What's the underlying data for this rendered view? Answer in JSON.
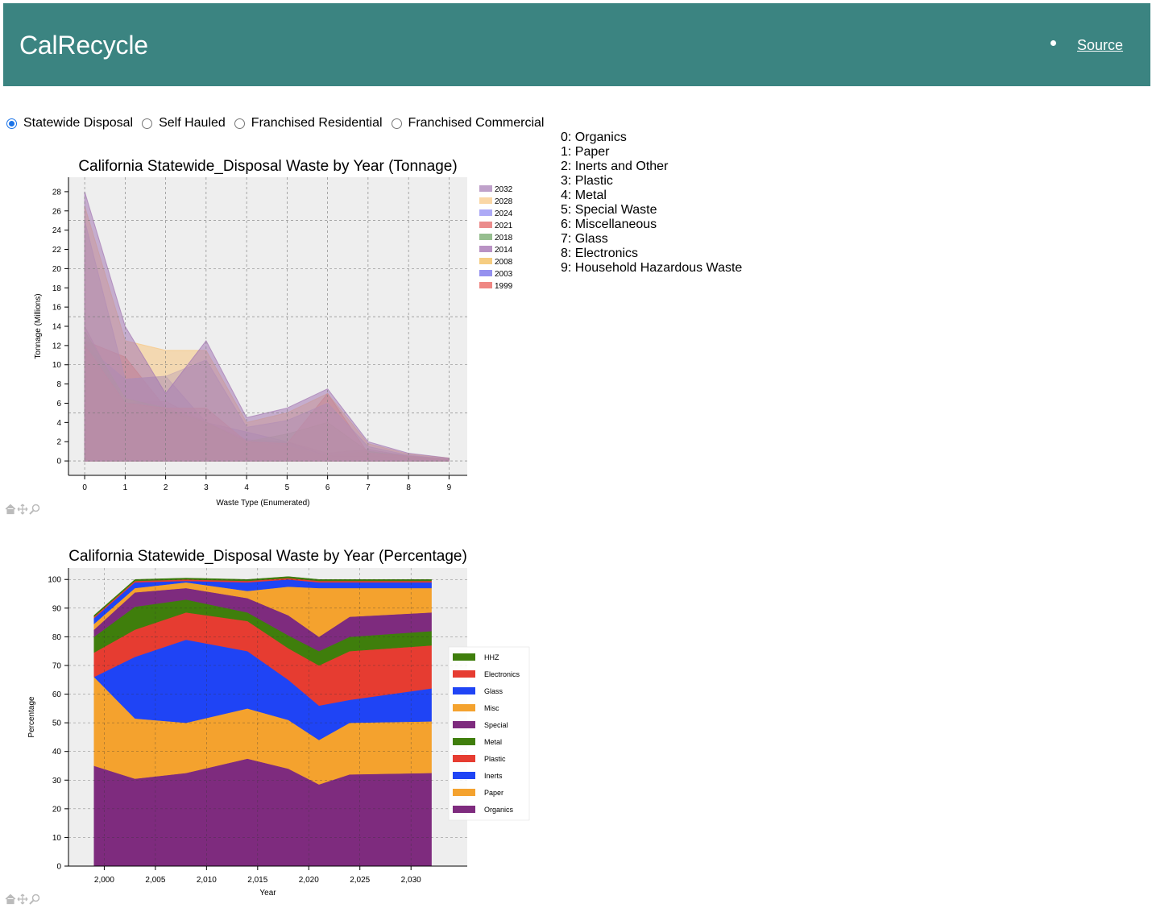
{
  "header": {
    "brand": "CalRecycle",
    "nav_link": "Source"
  },
  "radio_group": {
    "selected": 0,
    "options": [
      "Statewide Disposal",
      "Self Hauled",
      "Franchised Residential",
      "Franchised Commercial"
    ]
  },
  "waste_key": [
    "0: Organics",
    "1: Paper",
    "2: Inerts and Other",
    "3: Plastic",
    "4: Metal",
    "5: Special Waste",
    "6: Miscellaneous",
    "7: Glass",
    "8: Electronics",
    "9: Household Hazardous Waste"
  ],
  "toolbar_icons": [
    "home-icon",
    "pan-icon",
    "zoom-icon"
  ],
  "chart_data": [
    {
      "type": "area",
      "title": "California Statewide_Disposal Waste by Year (Tonnage)",
      "xlabel": "Waste Type (Enumerated)",
      "ylabel": "Tonnage (Millions)",
      "xlim": [
        -0.4,
        9.45
      ],
      "ylim": [
        -1.5,
        29.5
      ],
      "x_ticks": [
        0,
        1,
        2,
        3,
        4,
        5,
        6,
        7,
        8,
        9
      ],
      "y_ticks": [
        0,
        2,
        4,
        6,
        8,
        10,
        12,
        14,
        16,
        18,
        20,
        22,
        24,
        26,
        28
      ],
      "grid": true,
      "legend_position": "right",
      "series": [
        {
          "name": "2032",
          "color": "#a479b4",
          "values": [
            [
              0,
              28.0
            ],
            [
              1,
              14.0
            ],
            [
              2,
              7.0
            ],
            [
              3,
              12.5
            ],
            [
              4,
              4.5
            ],
            [
              5,
              5.5
            ],
            [
              6,
              7.5
            ],
            [
              7,
              2.0
            ],
            [
              8,
              0.8
            ],
            [
              9,
              0.3
            ]
          ]
        },
        {
          "name": "2028",
          "color": "#f8c680",
          "values": [
            [
              0,
              26.5
            ],
            [
              1,
              12.5
            ],
            [
              2,
              11.5
            ],
            [
              3,
              11.5
            ],
            [
              4,
              4.0
            ],
            [
              5,
              5.0
            ],
            [
              6,
              7.0
            ],
            [
              7,
              1.8
            ],
            [
              8,
              0.7
            ],
            [
              9,
              0.3
            ]
          ]
        },
        {
          "name": "2024",
          "color": "#8a86f2",
          "values": [
            [
              0,
              25.0
            ],
            [
              1,
              8.5
            ],
            [
              2,
              8.8
            ],
            [
              3,
              10.5
            ],
            [
              4,
              3.5
            ],
            [
              5,
              4.2
            ],
            [
              6,
              6.0
            ],
            [
              7,
              1.5
            ],
            [
              8,
              0.6
            ],
            [
              9,
              0.2
            ]
          ]
        },
        {
          "name": "2021",
          "color": "#e35b5b",
          "values": [
            [
              0,
              12.0
            ],
            [
              1,
              6.0
            ],
            [
              2,
              5.5
            ],
            [
              3,
              5.5
            ],
            [
              4,
              2.0
            ],
            [
              5,
              1.8
            ],
            [
              6,
              7.0
            ],
            [
              7,
              0.8
            ],
            [
              8,
              0.5
            ],
            [
              9,
              0.2
            ]
          ]
        },
        {
          "name": "2018",
          "color": "#6aa25f",
          "values": [
            [
              0,
              13.5
            ],
            [
              1,
              6.5
            ],
            [
              2,
              5.5
            ],
            [
              3,
              4.0
            ],
            [
              4,
              2.0
            ],
            [
              5,
              2.8
            ],
            [
              6,
              4.0
            ],
            [
              7,
              1.0
            ],
            [
              8,
              0.5
            ],
            [
              9,
              0.2
            ]
          ]
        },
        {
          "name": "2014",
          "color": "#9b64ab",
          "values": [
            [
              0,
              14.0
            ],
            [
              1,
              6.0
            ],
            [
              2,
              6.2
            ],
            [
              3,
              4.0
            ],
            [
              4,
              2.2
            ],
            [
              5,
              2.0
            ],
            [
              6,
              0.8
            ],
            [
              7,
              1.2
            ],
            [
              8,
              0.5
            ],
            [
              9,
              0.2
            ]
          ]
        },
        {
          "name": "2008",
          "color": "#f2b84c",
          "values": [
            [
              0,
              12.5
            ],
            [
              1,
              6.5
            ],
            [
              2,
              5.0
            ],
            [
              3,
              4.0
            ],
            [
              4,
              2.0
            ],
            [
              5,
              1.5
            ],
            [
              6,
              0.5
            ],
            [
              7,
              1.0
            ],
            [
              8,
              0.4
            ],
            [
              9,
              0.1
            ]
          ]
        },
        {
          "name": "2003",
          "color": "#6863e8",
          "values": [
            [
              0,
              12.0
            ],
            [
              1,
              8.5
            ],
            [
              2,
              8.8
            ],
            [
              3,
              4.0
            ],
            [
              4,
              3.0
            ],
            [
              5,
              2.0
            ],
            [
              6,
              0.5
            ],
            [
              7,
              0.5
            ],
            [
              8,
              0.3
            ],
            [
              9,
              0.1
            ]
          ]
        },
        {
          "name": "1999",
          "color": "#e8544e",
          "values": [
            [
              0,
              12.5
            ],
            [
              1,
              10.8
            ],
            [
              2,
              5.5
            ],
            [
              3,
              3.5
            ],
            [
              4,
              1.5
            ],
            [
              5,
              1.2
            ],
            [
              6,
              0.5
            ],
            [
              7,
              0.5
            ],
            [
              8,
              0.3
            ],
            [
              9,
              0.1
            ]
          ]
        }
      ]
    },
    {
      "type": "area",
      "stacked": true,
      "title": "California Statewide_Disposal Waste by Year (Percentage)",
      "xlabel": "Year",
      "ylabel": "Percentage",
      "x": [
        1999,
        2003,
        2008,
        2014,
        2018,
        2021,
        2024,
        2032
      ],
      "xlim": [
        1996.5,
        2035.5
      ],
      "ylim": [
        0,
        104
      ],
      "x_ticks": [
        "2,000",
        "2,005",
        "2,010",
        "2,015",
        "2,020",
        "2,025",
        "2,030"
      ],
      "x_tick_values": [
        2000,
        2005,
        2010,
        2015,
        2020,
        2025,
        2030
      ],
      "y_ticks": [
        0,
        10,
        20,
        30,
        40,
        50,
        60,
        70,
        80,
        90,
        100
      ],
      "grid": true,
      "legend_position": "right",
      "series": [
        {
          "name": "Organics",
          "color": "#7e2b7e",
          "values": [
            35.0,
            30.5,
            32.5,
            37.5,
            34.0,
            28.5,
            32.0,
            32.5
          ]
        },
        {
          "name": "Paper",
          "color": "#f4a22e",
          "values": [
            31.0,
            21.0,
            17.5,
            17.5,
            17.0,
            15.5,
            18.0,
            18.0
          ]
        },
        {
          "name": "Inerts",
          "color": "#1f44f5",
          "values": [
            0.0,
            21.5,
            29.0,
            20.0,
            14.0,
            12.0,
            8.0,
            11.5
          ]
        },
        {
          "name": "Plastic",
          "color": "#e63c31",
          "values": [
            8.5,
            9.5,
            9.5,
            10.5,
            11.0,
            14.0,
            17.0,
            15.0
          ]
        },
        {
          "name": "Metal",
          "color": "#3f7e0c",
          "values": [
            5.5,
            8.0,
            4.5,
            3.0,
            4.5,
            5.0,
            5.0,
            5.0
          ]
        },
        {
          "name": "Special",
          "color": "#7e2b7e",
          "values": [
            2.5,
            5.0,
            4.0,
            5.0,
            7.0,
            5.0,
            7.0,
            6.5
          ]
        },
        {
          "name": "Misc",
          "color": "#f4a22e",
          "values": [
            2.0,
            1.5,
            2.0,
            2.5,
            10.0,
            17.0,
            10.0,
            8.5
          ]
        },
        {
          "name": "Glass",
          "color": "#1f44f5",
          "values": [
            2.0,
            2.0,
            0.5,
            3.0,
            2.5,
            2.0,
            2.0,
            2.0
          ]
        },
        {
          "name": "Electronics",
          "color": "#e63c31",
          "values": [
            0.5,
            0.5,
            0.5,
            0.5,
            0.5,
            0.5,
            0.5,
            0.5
          ]
        },
        {
          "name": "HHZ",
          "color": "#3f7e0c",
          "values": [
            0.5,
            0.5,
            0.5,
            0.5,
            0.5,
            0.5,
            0.5,
            0.5
          ]
        }
      ]
    }
  ]
}
